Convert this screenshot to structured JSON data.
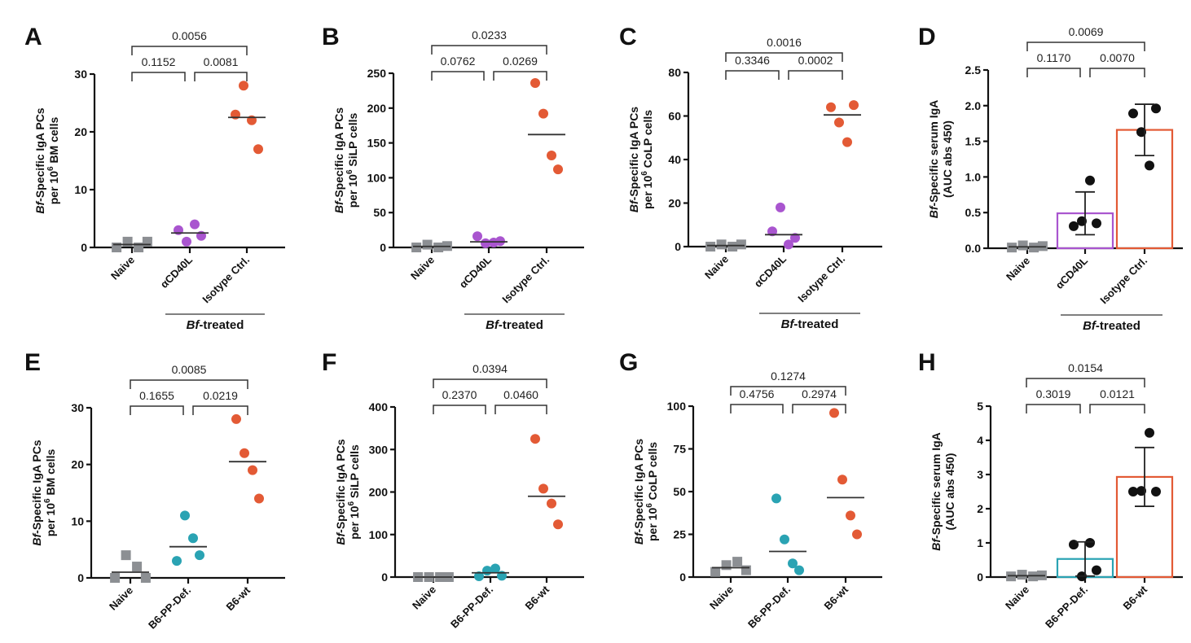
{
  "figure": {
    "group_label_italic": "Bf",
    "group_label_rest": "-treated"
  },
  "colors": {
    "naive": "#8c8f93",
    "aCD40L": "#a955cf",
    "isotype": "#e35a35",
    "pp_def": "#2aa3b3",
    "wt": "#e35a35",
    "dot_black": "#111111"
  },
  "chart_data": [
    {
      "panel": "A",
      "type": "scatter",
      "ylabel_italic": "Bf",
      "ylabel_line1": "-Specific IgA PCs",
      "ylabel_line2_pre": "per 10",
      "ylabel_sup": "6",
      "ylabel_line2_post": " BM cells",
      "ylim": [
        0,
        30
      ],
      "yticks": [
        0,
        10,
        20,
        30
      ],
      "yticklabels": [
        "0",
        "10",
        "20",
        "30"
      ],
      "categories": [
        "Naive",
        "αCD40L",
        "Isotype Ctrl."
      ],
      "group_span": [
        1,
        2
      ],
      "series": [
        {
          "name": "Naive",
          "marker": "square",
          "color": "#8c8f93",
          "values": [
            0,
            1,
            0,
            1
          ],
          "mean": 0.5
        },
        {
          "name": "αCD40L",
          "marker": "circle",
          "color": "#a955cf",
          "values": [
            3,
            1,
            4,
            2
          ],
          "mean": 2.5
        },
        {
          "name": "Isotype Ctrl.",
          "marker": "circle",
          "color": "#e35a35",
          "values": [
            23,
            28,
            22,
            17
          ],
          "mean": 22.5
        }
      ],
      "comparisons": [
        {
          "a": 0,
          "b": 1,
          "p": "0.1152",
          "level": 1
        },
        {
          "a": 1,
          "b": 2,
          "p": "0.0081",
          "level": 1
        },
        {
          "a": 0,
          "b": 2,
          "p": "0.0056",
          "level": 2
        }
      ]
    },
    {
      "panel": "B",
      "type": "scatter",
      "ylabel_italic": "Bf",
      "ylabel_line1": "-Specific IgA PCs",
      "ylabel_line2_pre": "per 10",
      "ylabel_sup": "6",
      "ylabel_line2_post": " SiLP cells",
      "ylim": [
        0,
        250
      ],
      "yticks": [
        0,
        50,
        100,
        150,
        200,
        250
      ],
      "yticklabels": [
        "0",
        "50",
        "100",
        "150",
        "200",
        "250"
      ],
      "categories": [
        "Naive",
        "αCD40L",
        "Isotype Ctrl."
      ],
      "group_span": [
        1,
        2
      ],
      "series": [
        {
          "name": "Naive",
          "marker": "square",
          "color": "#8c8f93",
          "values": [
            0,
            4,
            0,
            2
          ],
          "mean": 1.5
        },
        {
          "name": "αCD40L",
          "marker": "circle",
          "color": "#a955cf",
          "values": [
            16,
            6,
            7,
            9
          ],
          "mean": 8
        },
        {
          "name": "Isotype Ctrl.",
          "marker": "circle",
          "color": "#e35a35",
          "values": [
            236,
            192,
            132,
            112
          ],
          "mean": 162
        }
      ],
      "comparisons": [
        {
          "a": 0,
          "b": 1,
          "p": "0.0762",
          "level": 1
        },
        {
          "a": 1,
          "b": 2,
          "p": "0.0269",
          "level": 1
        },
        {
          "a": 0,
          "b": 2,
          "p": "0.0233",
          "level": 2
        }
      ]
    },
    {
      "panel": "C",
      "type": "scatter",
      "ylabel_italic": "Bf",
      "ylabel_line1": "-Specific IgA PCs",
      "ylabel_line2_pre": "per 10",
      "ylabel_sup": "6",
      "ylabel_line2_post": " CoLP cells",
      "ylim": [
        0,
        80
      ],
      "yticks": [
        0,
        20,
        40,
        60,
        80
      ],
      "yticklabels": [
        "0",
        "20",
        "40",
        "60",
        "80"
      ],
      "categories": [
        "Naive",
        "αCD40L",
        "Isotype Ctrl."
      ],
      "group_span": [
        1,
        2
      ],
      "series": [
        {
          "name": "Naive",
          "marker": "square",
          "color": "#8c8f93",
          "values": [
            0,
            1,
            0,
            1
          ],
          "mean": 0.5
        },
        {
          "name": "αCD40L",
          "marker": "circle",
          "color": "#a955cf",
          "values": [
            7,
            18,
            1,
            4
          ],
          "mean": 5.5
        },
        {
          "name": "Isotype Ctrl.",
          "marker": "circle",
          "color": "#e35a35",
          "values": [
            64,
            57,
            48,
            65
          ],
          "mean": 60.5
        }
      ],
      "comparisons": [
        {
          "a": 0,
          "b": 1,
          "p": "0.3346",
          "level": 1
        },
        {
          "a": 1,
          "b": 2,
          "p": "0.0002",
          "level": 1
        },
        {
          "a": 0,
          "b": 2,
          "p": "0.0016",
          "level": 2
        }
      ]
    },
    {
      "panel": "D",
      "type": "bar",
      "ylabel_italic": "Bf",
      "ylabel_line1": "-Specific serum IgA",
      "ylabel_line2_pre": "(AUC abs 450)",
      "ylabel_sup": "",
      "ylabel_line2_post": "",
      "ylim": [
        0,
        2.5
      ],
      "yticks": [
        0,
        0.5,
        1.0,
        1.5,
        2.0,
        2.5
      ],
      "yticklabels": [
        "0.0",
        "0.5",
        "1.0",
        "1.5",
        "2.0",
        "2.5"
      ],
      "categories": [
        "Naive",
        "αCD40L",
        "Isotype Ctrl."
      ],
      "group_span": [
        1,
        2
      ],
      "series": [
        {
          "name": "Naive",
          "marker": "square",
          "color": "#8c8f93",
          "dot_color": "#8c8f93",
          "values": [
            0.01,
            0.04,
            0.01,
            0.03
          ],
          "mean": 0.02,
          "bar": false
        },
        {
          "name": "αCD40L",
          "marker": "circle",
          "color": "#a955cf",
          "dot_color": "#111111",
          "values": [
            0.31,
            0.38,
            0.95,
            0.35
          ],
          "mean": 0.49,
          "sd": 0.3,
          "bar": true
        },
        {
          "name": "Isotype Ctrl.",
          "marker": "circle",
          "color": "#e35a35",
          "dot_color": "#111111",
          "values": [
            1.89,
            1.63,
            1.16,
            1.96
          ],
          "mean": 1.66,
          "sd": 0.36,
          "bar": true
        }
      ],
      "comparisons": [
        {
          "a": 0,
          "b": 1,
          "p": "0.1170",
          "level": 1
        },
        {
          "a": 1,
          "b": 2,
          "p": "0.0070",
          "level": 1
        },
        {
          "a": 0,
          "b": 2,
          "p": "0.0069",
          "level": 2
        }
      ]
    },
    {
      "panel": "E",
      "type": "scatter",
      "ylabel_italic": "Bf",
      "ylabel_line1": "-Specific IgA PCs",
      "ylabel_line2_pre": "per 10",
      "ylabel_sup": "6",
      "ylabel_line2_post": " BM cells",
      "ylim": [
        0,
        30
      ],
      "yticks": [
        0,
        10,
        20,
        30
      ],
      "yticklabels": [
        "0",
        "10",
        "20",
        "30"
      ],
      "categories": [
        "Naive",
        "B6-PP-Def.",
        "B6-wt"
      ],
      "group_span": [
        1,
        2
      ],
      "series": [
        {
          "name": "Naive",
          "marker": "square",
          "color": "#8c8f93",
          "values": [
            0,
            4,
            2,
            0
          ],
          "mean": 1
        },
        {
          "name": "B6-PP-Def.",
          "marker": "circle",
          "color": "#2aa3b3",
          "values": [
            3,
            11,
            7,
            4
          ],
          "mean": 5.5
        },
        {
          "name": "B6-wt",
          "marker": "circle",
          "color": "#e35a35",
          "values": [
            28,
            22,
            19,
            14
          ],
          "mean": 20.5
        }
      ],
      "comparisons": [
        {
          "a": 0,
          "b": 1,
          "p": "0.1655",
          "level": 1
        },
        {
          "a": 1,
          "b": 2,
          "p": "0.0219",
          "level": 1
        },
        {
          "a": 0,
          "b": 2,
          "p": "0.0085",
          "level": 2
        }
      ]
    },
    {
      "panel": "F",
      "type": "scatter",
      "ylabel_italic": "Bf",
      "ylabel_line1": "-Specific IgA PCs",
      "ylabel_line2_pre": "per 10",
      "ylabel_sup": "6",
      "ylabel_line2_post": " SiLP cells",
      "ylim": [
        0,
        400
      ],
      "yticks": [
        0,
        100,
        200,
        300,
        400
      ],
      "yticklabels": [
        "0",
        "100",
        "200",
        "300",
        "400"
      ],
      "categories": [
        "Naive",
        "B6-PP-Def.",
        "B6-wt"
      ],
      "group_span": [
        1,
        2
      ],
      "series": [
        {
          "name": "Naive",
          "marker": "square",
          "color": "#8c8f93",
          "values": [
            0,
            0,
            0,
            0
          ],
          "mean": 0
        },
        {
          "name": "B6-PP-Def.",
          "marker": "circle",
          "color": "#2aa3b3",
          "values": [
            2,
            15,
            20,
            3
          ],
          "mean": 10
        },
        {
          "name": "B6-wt",
          "marker": "circle",
          "color": "#e35a35",
          "values": [
            325,
            208,
            173,
            124
          ],
          "mean": 190
        }
      ],
      "comparisons": [
        {
          "a": 0,
          "b": 1,
          "p": "0.2370",
          "level": 1
        },
        {
          "a": 1,
          "b": 2,
          "p": "0.0460",
          "level": 1
        },
        {
          "a": 0,
          "b": 2,
          "p": "0.0394",
          "level": 2
        }
      ]
    },
    {
      "panel": "G",
      "type": "scatter",
      "ylabel_italic": "Bf",
      "ylabel_line1": "-Specific IgA PCs",
      "ylabel_line2_pre": "per 10",
      "ylabel_sup": "6",
      "ylabel_line2_post": " CoLP cells",
      "ylim": [
        0,
        100
      ],
      "yticks": [
        0,
        25,
        50,
        75,
        100
      ],
      "yticklabels": [
        "0",
        "25",
        "50",
        "75",
        "100"
      ],
      "categories": [
        "Naive",
        "B6-PP-Def.",
        "B6-wt"
      ],
      "group_span": [
        1,
        2
      ],
      "series": [
        {
          "name": "Naive",
          "marker": "square",
          "color": "#8c8f93",
          "values": [
            3,
            7,
            9,
            4
          ],
          "mean": 5.5
        },
        {
          "name": "B6-PP-Def.",
          "marker": "circle",
          "color": "#2aa3b3",
          "values": [
            46,
            22,
            8,
            4
          ],
          "mean": 15
        },
        {
          "name": "B6-wt",
          "marker": "circle",
          "color": "#e35a35",
          "values": [
            96,
            57,
            36,
            25
          ],
          "mean": 46.5
        }
      ],
      "comparisons": [
        {
          "a": 0,
          "b": 1,
          "p": "0.4756",
          "level": 1
        },
        {
          "a": 1,
          "b": 2,
          "p": "0.2974",
          "level": 1
        },
        {
          "a": 0,
          "b": 2,
          "p": "0.1274",
          "level": 2
        }
      ]
    },
    {
      "panel": "H",
      "type": "bar",
      "ylabel_italic": "Bf",
      "ylabel_line1": "-Specific serum IgA",
      "ylabel_line2_pre": "(AUC abs 450)",
      "ylabel_sup": "",
      "ylabel_line2_post": "",
      "ylim": [
        0,
        5
      ],
      "yticks": [
        0,
        1,
        2,
        3,
        4,
        5
      ],
      "yticklabels": [
        "0",
        "1",
        "2",
        "3",
        "4",
        "5"
      ],
      "categories": [
        "Naive",
        "B6-PP-Def.",
        "B6-wt"
      ],
      "group_span": [
        1,
        2
      ],
      "series": [
        {
          "name": "Naive",
          "marker": "square",
          "color": "#8c8f93",
          "dot_color": "#8c8f93",
          "values": [
            0.02,
            0.07,
            0.02,
            0.05
          ],
          "mean": 0.04,
          "bar": false
        },
        {
          "name": "B6-PP-Def.",
          "marker": "circle",
          "color": "#2aa3b3",
          "dot_color": "#111111",
          "values": [
            0.95,
            0.02,
            1.0,
            0.2
          ],
          "mean": 0.53,
          "sd": 0.5,
          "bar": true
        },
        {
          "name": "B6-wt",
          "marker": "circle",
          "color": "#e35a35",
          "dot_color": "#111111",
          "values": [
            2.5,
            2.52,
            4.22,
            2.5
          ],
          "mean": 2.93,
          "sd": 0.86,
          "bar": true
        }
      ],
      "comparisons": [
        {
          "a": 0,
          "b": 1,
          "p": "0.3019",
          "level": 1
        },
        {
          "a": 1,
          "b": 2,
          "p": "0.0121",
          "level": 1
        },
        {
          "a": 0,
          "b": 2,
          "p": "0.0154",
          "level": 2
        }
      ]
    }
  ]
}
